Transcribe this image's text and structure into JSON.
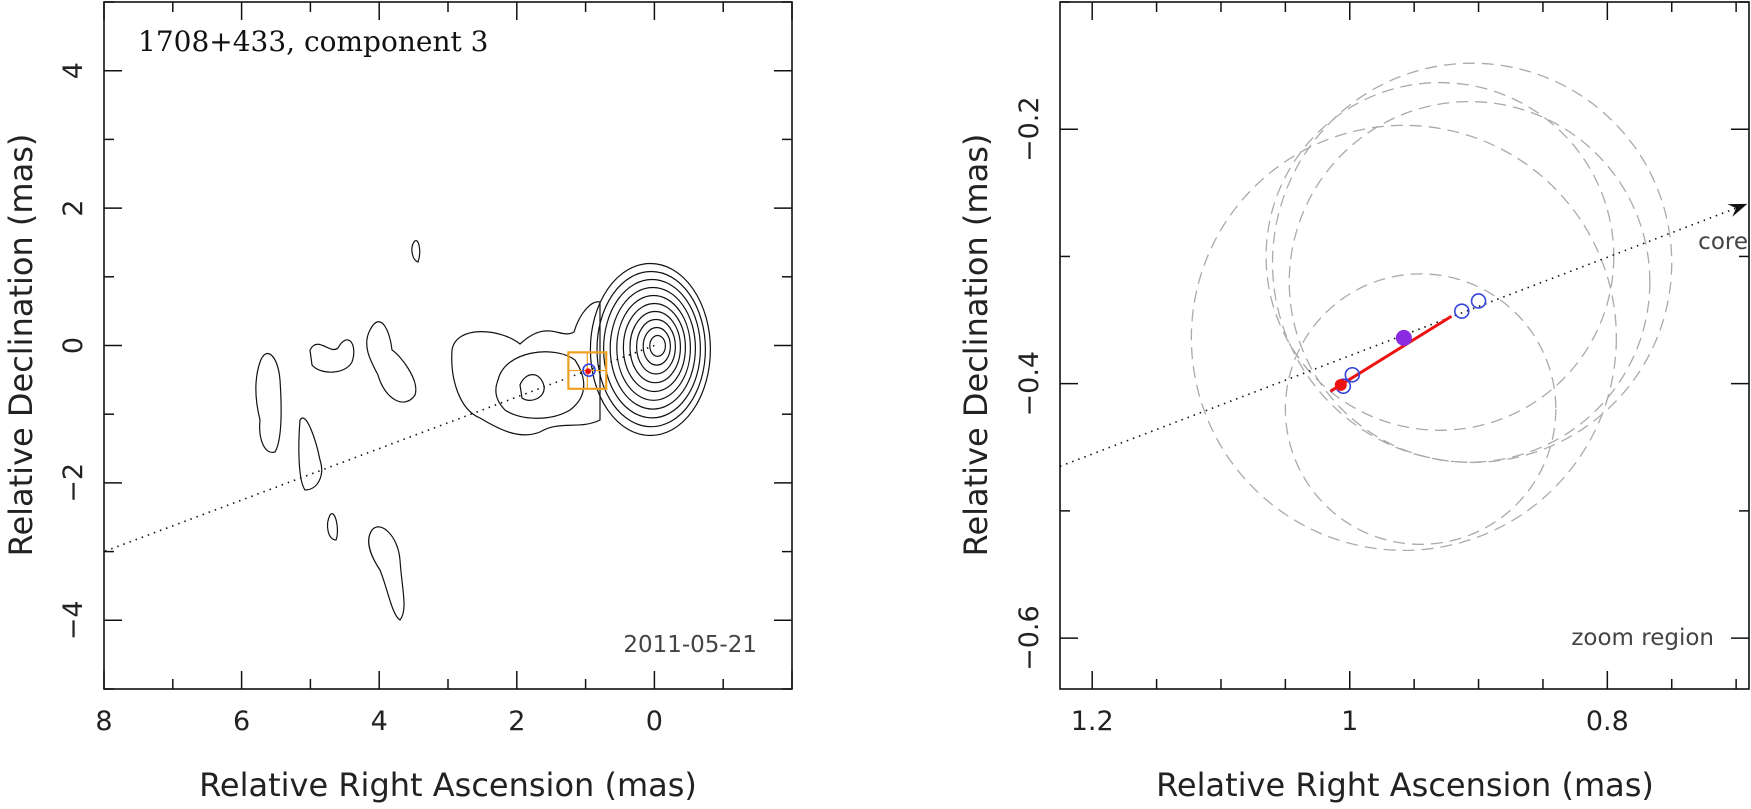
{
  "chart_data": [
    {
      "type": "contour",
      "panel": "left",
      "title": "1708+433, component 3",
      "date_label": "2011-05-21",
      "xlabel": "Relative Right Ascension (mas)",
      "ylabel": "Relative Declination (mas)",
      "xlim": [
        8,
        -2
      ],
      "ylim": [
        -5,
        5
      ],
      "xticks": [
        8,
        6,
        4,
        2,
        0
      ],
      "yticks": [
        4,
        2,
        0,
        -2,
        -4
      ],
      "core_position": {
        "x": 0,
        "y": 0
      },
      "contour_levels_count": 10,
      "direction_line": {
        "from": {
          "x": 0,
          "y": 0
        },
        "to": {
          "x": 8,
          "y": -3.0
        },
        "style": "dotted"
      },
      "component_marker": {
        "x": 0.95,
        "y": -0.36
      },
      "zoom_box": {
        "x_range": [
          1.25,
          0.7
        ],
        "y_range": [
          -0.1,
          -0.63
        ],
        "color": "#f0a020"
      }
    },
    {
      "type": "scatter",
      "panel": "right",
      "annotation_bottom": "zoom region",
      "annotation_core": "core",
      "xlabel": "Relative Right Ascension (mas)",
      "ylabel": "Relative Declination (mas)",
      "xlim": [
        1.225,
        0.69
      ],
      "ylim": [
        -0.64,
        -0.1
      ],
      "xticks": [
        1.2,
        1.0,
        0.8
      ],
      "xtick_labels": [
        "1.2",
        "1",
        "0.8"
      ],
      "yticks": [
        -0.2,
        -0.4,
        -0.6
      ],
      "ytick_labels": [
        "−0.2",
        "−0.4",
        "−0.6"
      ],
      "open_points": [
        {
          "x": 1.005,
          "y": -0.402
        },
        {
          "x": 0.998,
          "y": -0.393
        },
        {
          "x": 0.913,
          "y": -0.343
        },
        {
          "x": 0.9,
          "y": -0.335
        }
      ],
      "filled_point": {
        "x": 0.958,
        "y": -0.364,
        "color": "#8a2be2"
      },
      "red_point": {
        "x": 1.007,
        "y": -0.401
      },
      "fit_segment": {
        "from": {
          "x": 1.015,
          "y": -0.406
        },
        "to": {
          "x": 0.921,
          "y": -0.347
        },
        "color": "#ee1111"
      },
      "direction_line": {
        "from": {
          "x": 1.225,
          "y": -0.465
        },
        "to": {
          "x": 0.7,
          "y": -0.262
        },
        "style": "dotted",
        "arrow": true
      },
      "dashed_circles": [
        {
          "cx": 0.958,
          "cy": -0.364,
          "r": 0.165
        },
        {
          "cx": 0.905,
          "cy": -0.305,
          "r": 0.155
        },
        {
          "cx": 0.907,
          "cy": -0.32,
          "r": 0.14
        },
        {
          "cx": 0.945,
          "cy": -0.42,
          "r": 0.105
        },
        {
          "cx": 0.93,
          "cy": -0.3,
          "r": 0.135
        }
      ]
    }
  ]
}
